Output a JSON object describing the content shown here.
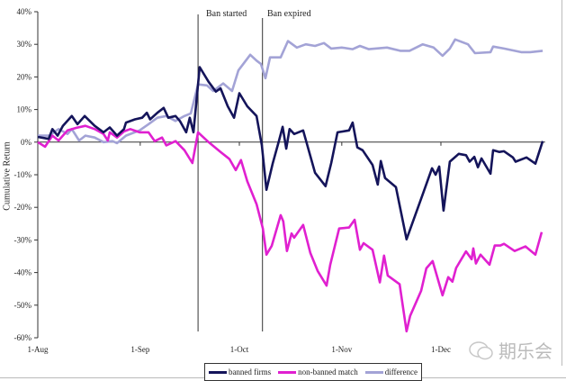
{
  "chart_data": {
    "type": "line",
    "title": "",
    "xlabel": "",
    "ylabel": "Cumulative Return",
    "x_unit": "days since 1-Aug",
    "xlim": [
      0,
      153
    ],
    "ylim": [
      -60,
      40
    ],
    "yticks": [
      40,
      30,
      20,
      10,
      0,
      -10,
      -20,
      -30,
      -40,
      -50,
      -60
    ],
    "ytick_labels": [
      "40%",
      "30%",
      "20%",
      "10%",
      "0%",
      "-10%",
      "-20%",
      "-30%",
      "-40%",
      "-50%",
      "-60%"
    ],
    "xticks": [
      0,
      31,
      61,
      92,
      122
    ],
    "xtick_labels": [
      "1-Aug",
      "1-Sep",
      "1-Oct",
      "1-Nov",
      "1-Dec"
    ],
    "grid": false,
    "legend_position": "bottom-center",
    "annotations": [
      {
        "label": "Ban started",
        "x": 48.5
      },
      {
        "label": "Ban expired",
        "x": 68
      }
    ],
    "series": [
      {
        "name": "banned firms",
        "color": "#14145a",
        "points": [
          [
            0,
            1.6
          ],
          [
            3.3,
            1
          ],
          [
            4.4,
            4
          ],
          [
            6,
            2
          ],
          [
            7.6,
            5
          ],
          [
            10.3,
            8
          ],
          [
            12,
            5.5
          ],
          [
            14.2,
            8
          ],
          [
            17.2,
            5
          ],
          [
            19.9,
            3
          ],
          [
            21.8,
            4.5
          ],
          [
            24,
            2
          ],
          [
            26.1,
            4
          ],
          [
            26.7,
            6
          ],
          [
            29.4,
            7
          ],
          [
            31.6,
            7.5
          ],
          [
            33,
            9
          ],
          [
            34,
            7
          ],
          [
            36.2,
            9
          ],
          [
            38.1,
            10.5
          ],
          [
            39.5,
            7.5
          ],
          [
            41.7,
            8
          ],
          [
            43,
            6.5
          ],
          [
            44.9,
            3
          ],
          [
            46,
            7.5
          ],
          [
            47.1,
            3
          ],
          [
            49,
            23
          ],
          [
            51.7,
            18.5
          ],
          [
            53.9,
            15.5
          ],
          [
            55.3,
            16.5
          ],
          [
            57.5,
            11
          ],
          [
            59.4,
            7.5
          ],
          [
            61,
            15
          ],
          [
            63.4,
            11
          ],
          [
            66.2,
            8
          ],
          [
            67.8,
            -1
          ],
          [
            69.2,
            -14.6
          ],
          [
            71.1,
            -6.5
          ],
          [
            73,
            0.5
          ],
          [
            74.1,
            4.7
          ],
          [
            75.2,
            -2
          ],
          [
            76.2,
            4
          ],
          [
            77.6,
            2.5
          ],
          [
            80.3,
            3.6
          ],
          [
            83.9,
            -9.4
          ],
          [
            87.1,
            -13.5
          ],
          [
            88.8,
            -6.4
          ],
          [
            90.7,
            3
          ],
          [
            94.2,
            3.6
          ],
          [
            95.3,
            6
          ],
          [
            96.7,
            -1.6
          ],
          [
            98.3,
            -2.5
          ],
          [
            101.3,
            -7
          ],
          [
            102.9,
            -13
          ],
          [
            103.8,
            -5.8
          ],
          [
            105.1,
            -11
          ],
          [
            108.4,
            -13.8
          ],
          [
            111.6,
            -29.8
          ],
          [
            116.5,
            -16
          ],
          [
            119.3,
            -8
          ],
          [
            120.4,
            -10
          ],
          [
            121.5,
            -7.5
          ],
          [
            122.8,
            -21
          ],
          [
            124.7,
            -6
          ],
          [
            127.4,
            -3.6
          ],
          [
            129.6,
            -4
          ],
          [
            130.7,
            -6
          ],
          [
            132.1,
            -4.5
          ],
          [
            133.2,
            -7.7
          ],
          [
            134.3,
            -5
          ],
          [
            137,
            -9.7
          ],
          [
            137.8,
            -2.5
          ],
          [
            139.7,
            -3
          ],
          [
            141.1,
            -2.8
          ],
          [
            143.8,
            -4.7
          ],
          [
            144.6,
            -6
          ],
          [
            147.9,
            -4.7
          ],
          [
            150.6,
            -6.6
          ],
          [
            152.8,
            0.3
          ]
        ]
      },
      {
        "name": "non-banned match",
        "color": "#e020d0",
        "points": [
          [
            0,
            0
          ],
          [
            2.2,
            -1.4
          ],
          [
            4.4,
            2
          ],
          [
            6.3,
            0.5
          ],
          [
            9,
            3.6
          ],
          [
            11.7,
            4.4
          ],
          [
            14.4,
            5
          ],
          [
            17.2,
            4
          ],
          [
            19.9,
            2.5
          ],
          [
            21.2,
            0.5
          ],
          [
            21.8,
            3
          ],
          [
            24,
            1.4
          ],
          [
            26.1,
            3.3
          ],
          [
            28,
            4
          ],
          [
            30.8,
            3
          ],
          [
            33.5,
            3
          ],
          [
            35.4,
            0.3
          ],
          [
            37.6,
            1.4
          ],
          [
            38.9,
            -1
          ],
          [
            41.7,
            0.3
          ],
          [
            44.4,
            -2.5
          ],
          [
            46.8,
            -6.4
          ],
          [
            48.5,
            3
          ],
          [
            51.7,
            0
          ],
          [
            55.3,
            -3
          ],
          [
            58,
            -5.2
          ],
          [
            59.9,
            -8.6
          ],
          [
            61.5,
            -5.5
          ],
          [
            63.4,
            -12
          ],
          [
            66.2,
            -19
          ],
          [
            68.1,
            -26.5
          ],
          [
            69.2,
            -34.5
          ],
          [
            70.8,
            -31.8
          ],
          [
            73.5,
            -22.4
          ],
          [
            74.3,
            -24.3
          ],
          [
            75.4,
            -33.4
          ],
          [
            76.8,
            -28
          ],
          [
            77.6,
            -29.3
          ],
          [
            80.3,
            -25.4
          ],
          [
            82.5,
            -34
          ],
          [
            84.7,
            -39.5
          ],
          [
            87.4,
            -44
          ],
          [
            88.5,
            -37.6
          ],
          [
            91.2,
            -26.5
          ],
          [
            94.2,
            -26.2
          ],
          [
            95.9,
            -23.8
          ],
          [
            97.5,
            -33
          ],
          [
            98.6,
            -31
          ],
          [
            101.3,
            -33
          ],
          [
            103.5,
            -43
          ],
          [
            104.8,
            -34.8
          ],
          [
            105.9,
            -40.9
          ],
          [
            109.5,
            -43.6
          ],
          [
            111.6,
            -58
          ],
          [
            112.7,
            -53.3
          ],
          [
            116,
            -45.6
          ],
          [
            117.6,
            -38.7
          ],
          [
            119.5,
            -36.5
          ],
          [
            122.5,
            -47
          ],
          [
            124.2,
            -41.4
          ],
          [
            125.5,
            -42.8
          ],
          [
            126.6,
            -38.6
          ],
          [
            129.6,
            -33.5
          ],
          [
            131.3,
            -35.9
          ],
          [
            131.8,
            -32.6
          ],
          [
            132.6,
            -37.2
          ],
          [
            134,
            -34.5
          ],
          [
            136.7,
            -37.6
          ],
          [
            138.3,
            -31.7
          ],
          [
            140,
            -31.7
          ],
          [
            141.1,
            -31.2
          ],
          [
            144.3,
            -33.4
          ],
          [
            147.6,
            -32
          ],
          [
            150.6,
            -34.5
          ],
          [
            152.5,
            -27.6
          ]
        ]
      },
      {
        "name": "difference",
        "color": "#a3a3d6",
        "points": [
          [
            0,
            2
          ],
          [
            3.5,
            2
          ],
          [
            6.3,
            4
          ],
          [
            9,
            2.5
          ],
          [
            10.3,
            4
          ],
          [
            12.5,
            0.5
          ],
          [
            14.4,
            2
          ],
          [
            17.2,
            1.4
          ],
          [
            19.9,
            0
          ],
          [
            22.6,
            0.3
          ],
          [
            24,
            -0.3
          ],
          [
            26.7,
            2
          ],
          [
            30.8,
            3.6
          ],
          [
            33.5,
            5.5
          ],
          [
            36.2,
            7.5
          ],
          [
            38.9,
            8
          ],
          [
            41.7,
            6.5
          ],
          [
            44.4,
            8
          ],
          [
            46.3,
            8.8
          ],
          [
            48.5,
            17.7
          ],
          [
            51.2,
            17.4
          ],
          [
            53.1,
            15.7
          ],
          [
            56.1,
            18
          ],
          [
            58.8,
            15.7
          ],
          [
            60.7,
            22
          ],
          [
            64.3,
            26.8
          ],
          [
            66.2,
            25
          ],
          [
            67.5,
            24
          ],
          [
            68.9,
            19.6
          ],
          [
            70.3,
            26
          ],
          [
            73.5,
            26
          ],
          [
            75.7,
            31
          ],
          [
            78.4,
            29
          ],
          [
            81.1,
            30
          ],
          [
            83.9,
            29.5
          ],
          [
            86.6,
            30.4
          ],
          [
            88.8,
            28.7
          ],
          [
            92,
            29
          ],
          [
            95.3,
            28.5
          ],
          [
            97.5,
            29.5
          ],
          [
            100.2,
            28.5
          ],
          [
            105.7,
            29
          ],
          [
            109.7,
            28
          ],
          [
            112.5,
            28
          ],
          [
            116.5,
            30
          ],
          [
            119.8,
            29
          ],
          [
            122.5,
            26.5
          ],
          [
            124.7,
            28.7
          ],
          [
            126.3,
            31.5
          ],
          [
            130.2,
            30
          ],
          [
            132.3,
            27.3
          ],
          [
            137,
            27.6
          ],
          [
            137.8,
            29.3
          ],
          [
            141.1,
            28.7
          ],
          [
            146.3,
            27.6
          ],
          [
            149,
            27.6
          ],
          [
            152.8,
            28
          ]
        ]
      }
    ]
  },
  "watermark": {
    "text": "期乐会"
  }
}
